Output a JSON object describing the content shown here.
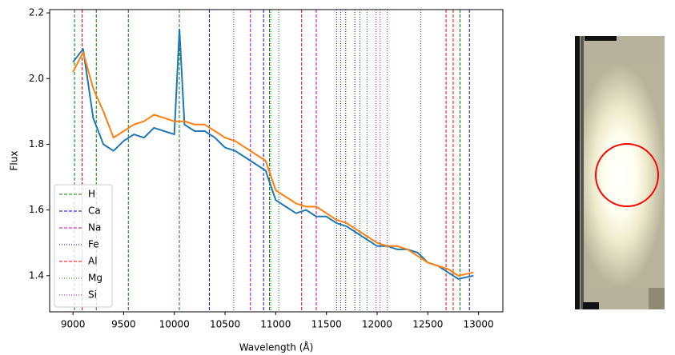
{
  "chart_data": {
    "type": "line",
    "x_label": "Wavelength (Å)",
    "y_label": "Flux",
    "xlim": [
      8770,
      13240
    ],
    "ylim": [
      1.29,
      2.21
    ],
    "xticks": [
      9000,
      9500,
      10000,
      10500,
      11000,
      11500,
      12000,
      12500,
      13000
    ],
    "yticks": [
      1.4,
      1.6,
      1.8,
      {
        "value": 2,
        "label": "2.0"
      },
      2.2
    ],
    "legend": "lower left",
    "x": [
      9000,
      9100,
      9200,
      9300,
      9400,
      9500,
      9600,
      9700,
      9800,
      9900,
      10000,
      10050,
      10100,
      10200,
      10300,
      10400,
      10500,
      10600,
      10700,
      10800,
      10900,
      11000,
      11100,
      11200,
      11300,
      11400,
      11500,
      11600,
      11700,
      11800,
      11900,
      12000,
      12100,
      12200,
      12300,
      12400,
      12500,
      12600,
      12700,
      12800,
      12950
    ],
    "series": [
      {
        "color": "#1f77b4",
        "values": [
          2.05,
          2.09,
          1.88,
          1.8,
          1.78,
          1.81,
          1.83,
          1.82,
          1.85,
          1.84,
          1.83,
          2.15,
          1.86,
          1.84,
          1.84,
          1.82,
          1.79,
          1.78,
          1.76,
          1.74,
          1.72,
          1.63,
          1.61,
          1.59,
          1.6,
          1.58,
          1.58,
          1.56,
          1.55,
          1.53,
          1.51,
          1.49,
          1.49,
          1.48,
          1.48,
          1.47,
          1.44,
          1.43,
          1.41,
          1.39,
          1.4
        ]
      },
      {
        "color": "#ff7f0e",
        "values": [
          2.02,
          2.08,
          1.97,
          1.9,
          1.82,
          1.84,
          1.86,
          1.87,
          1.89,
          1.88,
          1.87,
          1.87,
          1.87,
          1.86,
          1.86,
          1.84,
          1.82,
          1.81,
          1.79,
          1.77,
          1.75,
          1.66,
          1.64,
          1.62,
          1.61,
          1.61,
          1.59,
          1.57,
          1.56,
          1.54,
          1.52,
          1.5,
          1.49,
          1.49,
          1.48,
          1.46,
          1.44,
          1.43,
          1.42,
          1.4,
          1.41
        ]
      }
    ],
    "lines": [
      {
        "name": "H",
        "color": "#008000",
        "style": "dashed",
        "positions": [
          9015,
          9230,
          9546,
          10049,
          10938,
          12818
        ]
      },
      {
        "name": "Ca",
        "color": "#0000ff",
        "style": "dashed",
        "positions": [
          10345,
          10880,
          12910
        ]
      },
      {
        "name": "Na",
        "color": "#bf00bf",
        "style": "dashed",
        "positions": [
          10750,
          11400
        ]
      },
      {
        "name": "Fe",
        "color": "#0000ff",
        "style": "dotted",
        "positions": [
          11600,
          11640,
          11690,
          11780
        ]
      },
      {
        "name": "Al",
        "color": "#ff0000",
        "style": "dashed",
        "positions": [
          9090,
          11255,
          12680,
          12750
        ]
      },
      {
        "name": "Mg",
        "color": "#008000",
        "style": "dotted",
        "positions": [
          10950,
          11030,
          11830,
          11900,
          12430
        ]
      },
      {
        "name": "Si",
        "color": "#bf00bf",
        "style": "dotted",
        "positions": [
          10585,
          11990,
          12030,
          12100
        ]
      }
    ]
  }
}
